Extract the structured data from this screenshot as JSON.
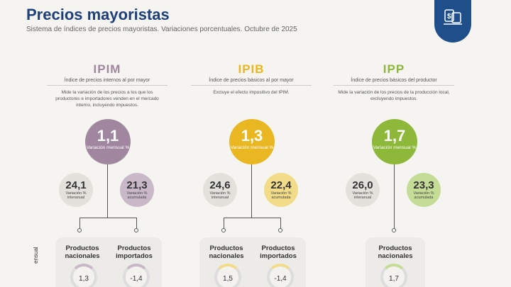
{
  "header": {
    "title": "Precios mayoristas",
    "subtitle": "Sistema de índices de precios mayoristas. Variaciones porcentuales. Octubre de 2025",
    "badge_icon": "price-tag-dollar-icon"
  },
  "side_label": "ensual",
  "columns": [
    {
      "name": "IPIM",
      "full_name": "Índice de precios internos al por mayor",
      "description": "Mide la variación de los precios a los que los productores e importadores venden en el mercado interno, incluyendo impuestos.",
      "monthly": "1,1",
      "monthly_label": "Variación mensual %",
      "interannual": "24,1",
      "interannual_label": "Variación % interanual",
      "accumulated": "21,3",
      "accumulated_label": "Variación % acumulada",
      "color": "#a0869f",
      "light_color": "#c9b9c8",
      "cards": [
        {
          "label": "Productos nacionales",
          "value": "1,3"
        },
        {
          "label": "Productos importados",
          "value": "-1,4"
        }
      ]
    },
    {
      "name": "IPIB",
      "full_name": "Índice de precios básicos al por mayor",
      "description": "Excluye el efecto impositivo del IPIM.",
      "monthly": "1,3",
      "monthly_label": "Variación mensual %",
      "interannual": "24,6",
      "interannual_label": "Variación % interanual",
      "accumulated": "22,4",
      "accumulated_label": "Variación % acumulada",
      "color": "#e9b721",
      "light_color": "#f2dc8a",
      "cards": [
        {
          "label": "Productos nacionales",
          "value": "1,5"
        },
        {
          "label": "Productos importados",
          "value": "-1,4"
        }
      ]
    },
    {
      "name": "IPP",
      "full_name": "Índice de precios básicos del productor",
      "description": "Mide la variación de los precios de la producción local, excluyendo impuestos.",
      "monthly": "1,7",
      "monthly_label": "Variación mensual %",
      "interannual": "26,0",
      "interannual_label": "Variación % interanual",
      "accumulated": "23,3",
      "accumulated_label": "Variación % acumulada",
      "color": "#8db839",
      "light_color": "#c5dc97",
      "cards": [
        {
          "label": "Productos nacionales",
          "value": "1,7"
        }
      ]
    }
  ]
}
